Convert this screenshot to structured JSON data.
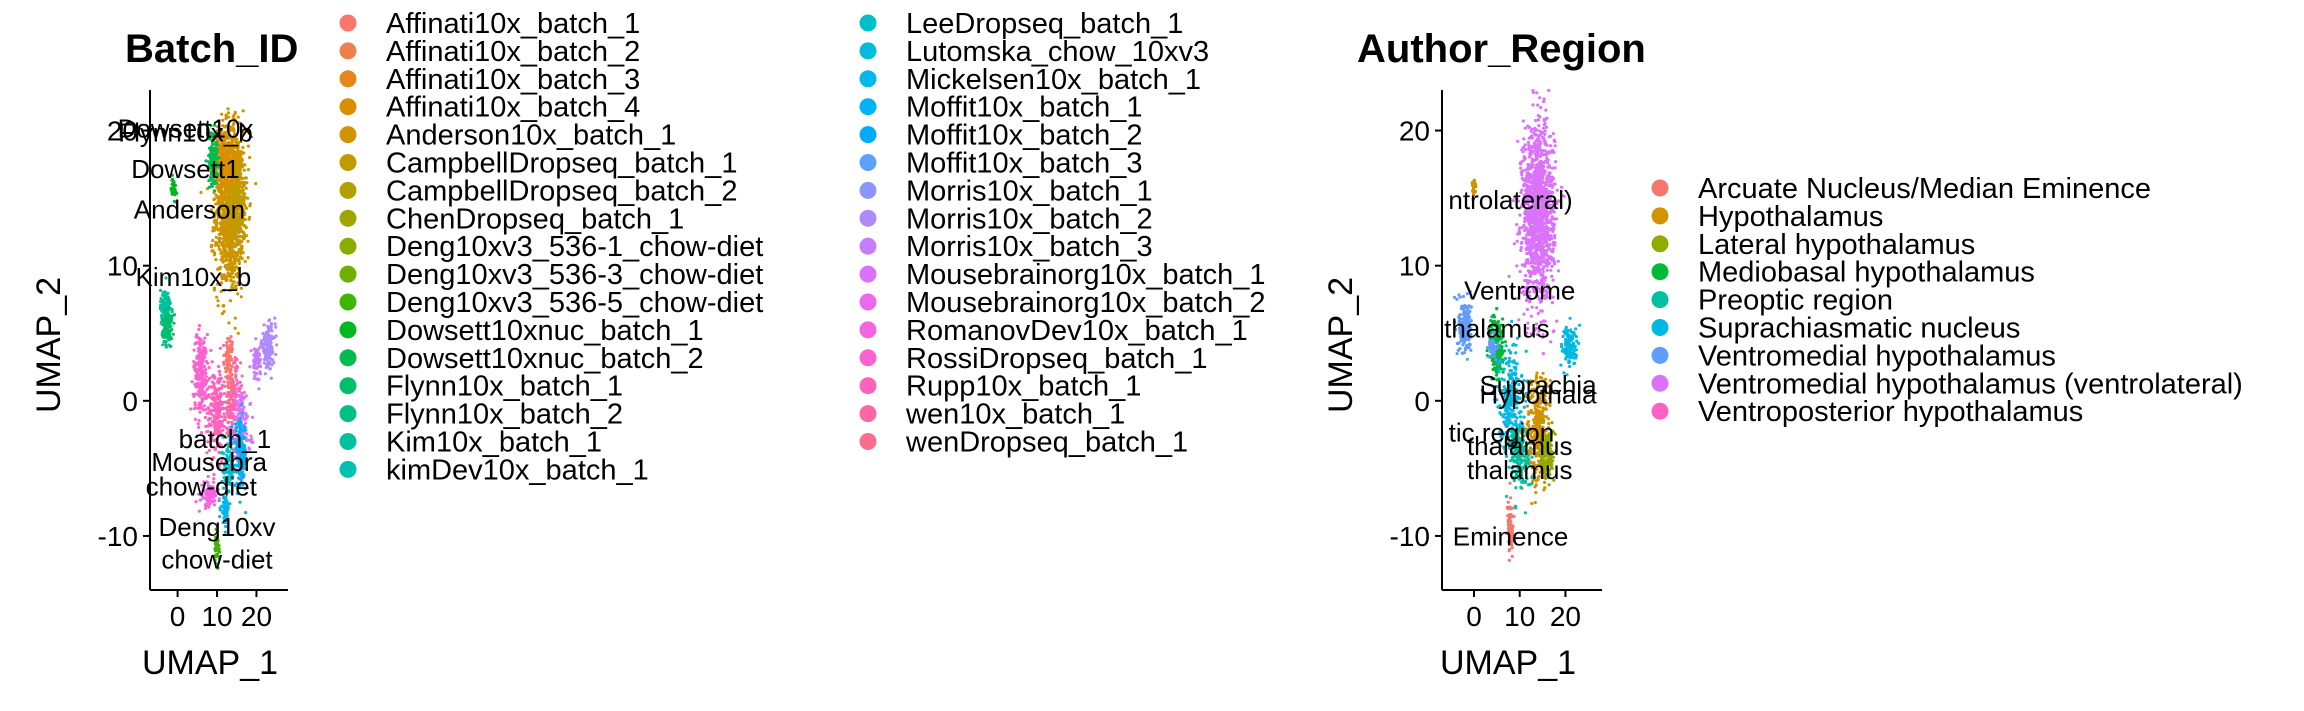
{
  "chart_data": [
    {
      "type": "scatter",
      "title": "Batch_ID",
      "xlabel": "UMAP_1",
      "ylabel": "UMAP_2",
      "xlim": [
        -7,
        28
      ],
      "ylim": [
        -14,
        23
      ],
      "x_ticks": [
        "0",
        "10",
        "20"
      ],
      "y_ticks": [
        "-10",
        "0",
        "10",
        "20"
      ],
      "legend_position": "right",
      "annotations": [
        {
          "text": "Dowsett10x",
          "x": 2,
          "y": 19.5
        },
        {
          "text": "Flynn10x_b",
          "x": 2,
          "y": 19.2
        },
        {
          "text": "Dowsett1",
          "x": 2,
          "y": 16.5
        },
        {
          "text": "Anderson",
          "x": 3,
          "y": 13.5
        },
        {
          "text": "Kim10x_b",
          "x": 4,
          "y": 8.5
        },
        {
          "text": "batch_1",
          "x": 12,
          "y": -3.5
        },
        {
          "text": "Mousebra",
          "x": 8,
          "y": -5.2
        },
        {
          "text": "chow-diet",
          "x": 6,
          "y": -7.0
        },
        {
          "text": "Deng10xv",
          "x": 10,
          "y": -10.0
        },
        {
          "text": "chow-diet",
          "x": 10,
          "y": -12.4
        }
      ],
      "series": [
        {
          "name": "Affinati10x_batch_1",
          "color": "#F8766D"
        },
        {
          "name": "Affinati10x_batch_2",
          "color": "#F07F4E"
        },
        {
          "name": "Affinati10x_batch_3",
          "color": "#E6861D"
        },
        {
          "name": "Affinati10x_batch_4",
          "color": "#DB8E00"
        },
        {
          "name": "Anderson10x_batch_1",
          "color": "#CF9400"
        },
        {
          "name": "CampbellDropseq_batch_1",
          "color": "#C19A00"
        },
        {
          "name": "CampbellDropseq_batch_2",
          "color": "#B1A000"
        },
        {
          "name": "ChenDropseq_batch_1",
          "color": "#A0A600"
        },
        {
          "name": "Deng10xv3_536-1_chow-diet",
          "color": "#8BAB00"
        },
        {
          "name": "Deng10xv3_536-3_chow-diet",
          "color": "#6EB000"
        },
        {
          "name": "Deng10xv3_536-5_chow-diet",
          "color": "#3EB500"
        },
        {
          "name": "Dowsett10xnuc_batch_1",
          "color": "#00B81F"
        },
        {
          "name": "Dowsett10xnuc_batch_2",
          "color": "#00BB4E"
        },
        {
          "name": "Flynn10x_batch_1",
          "color": "#00BE6C"
        },
        {
          "name": "Flynn10x_batch_2",
          "color": "#00C086"
        },
        {
          "name": "Kim10x_batch_1",
          "color": "#00C19E"
        },
        {
          "name": "kimDev10x_batch_1",
          "color": "#00C0B4"
        },
        {
          "name": "LeeDropseq_batch_1",
          "color": "#00BFC9"
        },
        {
          "name": "Lutomska_chow_10xv3",
          "color": "#00BCDC"
        },
        {
          "name": "Mickelsen10x_batch_1",
          "color": "#00B8EC"
        },
        {
          "name": "Moffit10x_batch_1",
          "color": "#00B2F7"
        },
        {
          "name": "Moffit10x_batch_2",
          "color": "#00ABFD"
        },
        {
          "name": "Moffit10x_batch_3",
          "color": "#5BA2FF"
        },
        {
          "name": "Morris10x_batch_1",
          "color": "#8B97FF"
        },
        {
          "name": "Morris10x_batch_2",
          "color": "#AD8BFF"
        },
        {
          "name": "Morris10x_batch_3",
          "color": "#C77CFF"
        },
        {
          "name": "Mousebrainorg10x_batch_1",
          "color": "#DB72FB"
        },
        {
          "name": "Mousebrainorg10x_batch_2",
          "color": "#EA69EE"
        },
        {
          "name": "RomanovDev10x_batch_1",
          "color": "#F564E3"
        },
        {
          "name": "RossiDropseq_batch_1",
          "color": "#FC61D2"
        },
        {
          "name": "Rupp10x_batch_1",
          "color": "#FF62BC"
        },
        {
          "name": "wen10x_batch_1",
          "color": "#FF66A5"
        },
        {
          "name": "wenDropseq_batch_1",
          "color": "#FC6C8B"
        }
      ],
      "clusters": [
        {
          "series": "Anderson10x_batch_1",
          "cx": 13,
          "cy": 14,
          "rx": 3.5,
          "ry": 6,
          "n": 900
        },
        {
          "series": "CampbellDropseq_batch_1",
          "cx": 15,
          "cy": 15,
          "rx": 3,
          "ry": 5,
          "n": 400
        },
        {
          "series": "Affinati10x_batch_4",
          "cx": 12,
          "cy": 18,
          "rx": 3,
          "ry": 2.5,
          "n": 300
        },
        {
          "series": "Dowsett10xnuc_batch_2",
          "cx": 9,
          "cy": 18,
          "rx": 1.2,
          "ry": 2,
          "n": 120
        },
        {
          "series": "Dowsett10xnuc_batch_1",
          "cx": -1,
          "cy": 15.7,
          "rx": 0.6,
          "ry": 0.8,
          "n": 40
        },
        {
          "series": "Kim10x_batch_1",
          "cx": -3,
          "cy": 6.5,
          "rx": 1.3,
          "ry": 1.8,
          "n": 140
        },
        {
          "series": "Flynn10x_batch_1",
          "cx": -2.5,
          "cy": 5.5,
          "rx": 1.2,
          "ry": 1.5,
          "n": 80
        },
        {
          "series": "RossiDropseq_batch_1",
          "cx": 6,
          "cy": 2,
          "rx": 2,
          "ry": 3,
          "n": 220
        },
        {
          "series": "Rupp10x_batch_1",
          "cx": 10,
          "cy": -1,
          "rx": 2.5,
          "ry": 3.5,
          "n": 220
        },
        {
          "series": "wen10x_batch_1",
          "cx": 14,
          "cy": 0,
          "rx": 2,
          "ry": 3,
          "n": 150
        },
        {
          "series": "Mousebrainorg10x_batch_1",
          "cx": 16,
          "cy": -2,
          "rx": 2.5,
          "ry": 3,
          "n": 150
        },
        {
          "series": "Morris10x_batch_2",
          "cx": 23,
          "cy": 4,
          "rx": 1.8,
          "ry": 1.5,
          "n": 140
        },
        {
          "series": "Moffit10x_batch_1",
          "cx": 16,
          "cy": -4,
          "rx": 1.5,
          "ry": 2.5,
          "n": 150
        },
        {
          "series": "LeeDropseq_batch_1",
          "cx": 13,
          "cy": -5,
          "rx": 1.5,
          "ry": 2,
          "n": 90
        },
        {
          "series": "Mickelsen10x_batch_1",
          "cx": 12,
          "cy": -8,
          "rx": 1,
          "ry": 1,
          "n": 60
        },
        {
          "series": "RomanovDev10x_batch_1",
          "cx": 8,
          "cy": -7,
          "rx": 2,
          "ry": 1,
          "n": 80
        },
        {
          "series": "Deng10xv3_536-5_chow-diet",
          "cx": 10,
          "cy": -11,
          "rx": 0.6,
          "ry": 1,
          "n": 40
        },
        {
          "series": "Morris10x_batch_3",
          "cx": 20,
          "cy": 3,
          "rx": 1.2,
          "ry": 1.2,
          "n": 60
        },
        {
          "series": "Affinati10x_batch_1",
          "cx": 13,
          "cy": 3,
          "rx": 1,
          "ry": 2,
          "n": 70
        }
      ]
    },
    {
      "type": "scatter",
      "title": "Author_Region",
      "xlabel": "UMAP_1",
      "ylabel": "UMAP_2",
      "xlim": [
        -7,
        28
      ],
      "ylim": [
        -14,
        23
      ],
      "x_ticks": [
        "0",
        "10",
        "20"
      ],
      "y_ticks": [
        "-10",
        "0",
        "10",
        "20"
      ],
      "legend_position": "right",
      "annotations": [
        {
          "text": "ntrolateral)",
          "x": 8,
          "y": 14.2
        },
        {
          "text": "Ventrome",
          "x": 10,
          "y": 7.5
        },
        {
          "text": "thalamus",
          "x": 5,
          "y": 4.7
        },
        {
          "text": "Suprachia",
          "x": 14,
          "y": 0.5
        },
        {
          "text": "Hypothala",
          "x": 14,
          "y": -0.2
        },
        {
          "text": "tic region",
          "x": 6,
          "y": -3.0
        },
        {
          "text": "thalamus",
          "x": 10,
          "y": -4.0
        },
        {
          "text": "thalamus",
          "x": 10,
          "y": -5.8
        },
        {
          "text": "Eminence",
          "x": 8,
          "y": -10.7
        }
      ],
      "series": [
        {
          "name": "Arcuate Nucleus/Median Eminence",
          "color": "#F8766D"
        },
        {
          "name": "Hypothalamus",
          "color": "#D39200"
        },
        {
          "name": "Lateral hypothalamus",
          "color": "#93AA00"
        },
        {
          "name": "Mediobasal hypothalamus",
          "color": "#00BA38"
        },
        {
          "name": "Preoptic region",
          "color": "#00C19F"
        },
        {
          "name": "Suprachiasmatic nucleus",
          "color": "#00B9E3"
        },
        {
          "name": "Ventromedial hypothalamus",
          "color": "#619CFF"
        },
        {
          "name": "Ventromedial hypothalamus (ventrolateral)",
          "color": "#DB72FB"
        },
        {
          "name": "Ventroposterior hypothalamus",
          "color": "#FF61C3"
        }
      ],
      "clusters": [
        {
          "series": "Ventromedial hypothalamus (ventrolateral)",
          "cx": 14,
          "cy": 14,
          "rx": 3.5,
          "ry": 6.5,
          "n": 1300
        },
        {
          "series": "Ventromedial hypothalamus",
          "cx": -2,
          "cy": 5.5,
          "rx": 1.4,
          "ry": 2,
          "n": 180
        },
        {
          "series": "Mediobasal hypothalamus",
          "cx": 5,
          "cy": 4,
          "rx": 1.5,
          "ry": 2.5,
          "n": 200
        },
        {
          "series": "Suprachiasmatic nucleus",
          "cx": 8,
          "cy": 0,
          "rx": 2.5,
          "ry": 4,
          "n": 260
        },
        {
          "series": "Preoptic region",
          "cx": 10,
          "cy": -4,
          "rx": 2.5,
          "ry": 2.5,
          "n": 180
        },
        {
          "series": "Hypothalamus",
          "cx": 14,
          "cy": -2,
          "rx": 2.5,
          "ry": 4,
          "n": 300
        },
        {
          "series": "Lateral hypothalamus",
          "cx": 16,
          "cy": -4,
          "rx": 1.5,
          "ry": 2,
          "n": 140
        },
        {
          "series": "Suprachiasmatic nucleus",
          "cx": 21,
          "cy": 4,
          "rx": 1.8,
          "ry": 1.5,
          "n": 120
        },
        {
          "series": "Arcuate Nucleus/Median Eminence",
          "cx": 8,
          "cy": -9.5,
          "rx": 0.6,
          "ry": 1.8,
          "n": 80
        },
        {
          "series": "Hypothalamus",
          "cx": 0,
          "cy": 15.7,
          "rx": 0.5,
          "ry": 0.7,
          "n": 30
        },
        {
          "series": "Ventromedial hypothalamus",
          "cx": 4,
          "cy": 4,
          "rx": 0.8,
          "ry": 0.8,
          "n": 40
        }
      ]
    }
  ]
}
